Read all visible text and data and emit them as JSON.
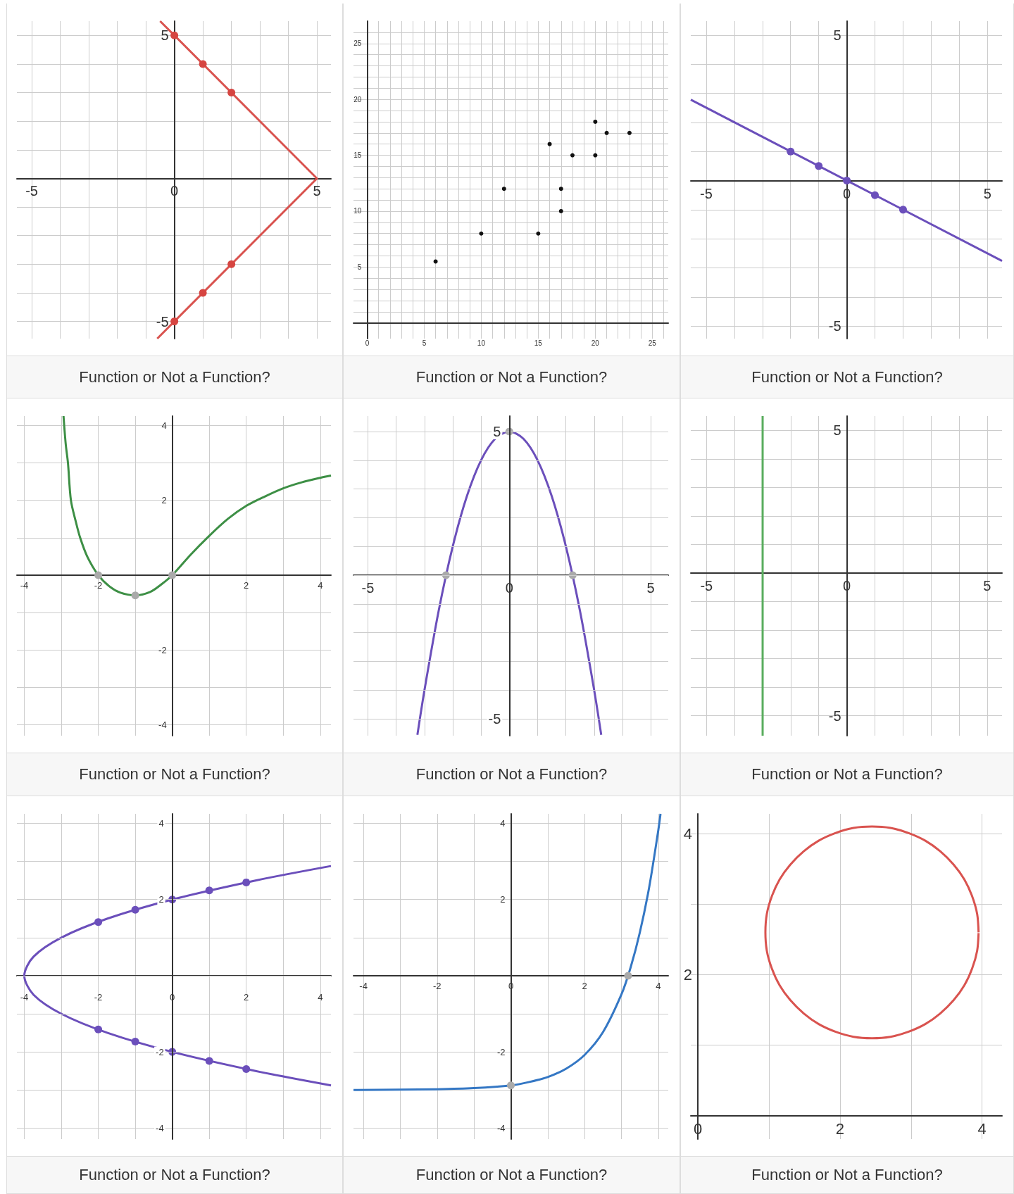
{
  "chart_data": [
    {
      "type": "line",
      "annotations": [
        "Function or Not a Function?"
      ],
      "xlim": [
        -5.52,
        5.49
      ],
      "ylim": [
        -5.6,
        5.5
      ],
      "grid": true,
      "xticks": [
        -5,
        {
          "value": -4,
          "label": null
        },
        {
          "value": -3,
          "label": null
        },
        {
          "value": -2,
          "label": null
        },
        {
          "value": -1,
          "label": null
        },
        0,
        {
          "value": 1,
          "label": null
        },
        {
          "value": 2,
          "label": null
        },
        {
          "value": 3,
          "label": null
        },
        {
          "value": 4,
          "label": null
        },
        5
      ],
      "yticks": [
        -5,
        {
          "value": -4,
          "label": null
        },
        {
          "value": -3,
          "label": null
        },
        {
          "value": -2,
          "label": null
        },
        {
          "value": -1,
          "label": null
        },
        {
          "value": 0,
          "label": null
        },
        {
          "value": 1,
          "label": null
        },
        {
          "value": 2,
          "label": null
        },
        {
          "value": 3,
          "label": null
        },
        {
          "value": 4,
          "label": null
        },
        5
      ],
      "series": [
        {
          "marker": "none",
          "color": "#d9534f",
          "x": [
            -0.5,
            5,
            -0.6
          ],
          "values": [
            5.5,
            0,
            -5.6
          ]
        },
        {
          "type": "scatter",
          "marker": "circle",
          "color": "#d64541",
          "x": [
            0,
            1,
            2,
            2,
            1,
            0
          ],
          "values": [
            5,
            4,
            3,
            -3,
            -4,
            -5
          ]
        }
      ]
    },
    {
      "type": "scatter",
      "annotations": [
        "Function or Not a Function?"
      ],
      "xlim": [
        -1.2,
        26.4
      ],
      "ylim": [
        -1.4,
        27
      ],
      "grid": true,
      "xticks": [
        0,
        {
          "value": 1,
          "label": null
        },
        {
          "value": 2,
          "label": null
        },
        {
          "value": 3,
          "label": null
        },
        {
          "value": 4,
          "label": null
        },
        5,
        {
          "value": 6,
          "label": null
        },
        {
          "value": 7,
          "label": null
        },
        {
          "value": 8,
          "label": null
        },
        {
          "value": 9,
          "label": null
        },
        10,
        {
          "value": 11,
          "label": null
        },
        {
          "value": 12,
          "label": null
        },
        {
          "value": 13,
          "label": null
        },
        {
          "value": 14,
          "label": null
        },
        15,
        {
          "value": 16,
          "label": null
        },
        {
          "value": 17,
          "label": null
        },
        {
          "value": 18,
          "label": null
        },
        {
          "value": 19,
          "label": null
        },
        20,
        {
          "value": 21,
          "label": null
        },
        {
          "value": 22,
          "label": null
        },
        {
          "value": 23,
          "label": null
        },
        {
          "value": 24,
          "label": null
        },
        25,
        {
          "value": 26,
          "label": null
        }
      ],
      "yticks": [
        {
          "value": 0,
          "label": null
        },
        {
          "value": 1,
          "label": null
        },
        {
          "value": 2,
          "label": null
        },
        {
          "value": 3,
          "label": null
        },
        {
          "value": 4,
          "label": null
        },
        5,
        {
          "value": 6,
          "label": null
        },
        {
          "value": 7,
          "label": null
        },
        {
          "value": 8,
          "label": null
        },
        {
          "value": 9,
          "label": null
        },
        10,
        {
          "value": 11,
          "label": null
        },
        {
          "value": 12,
          "label": null
        },
        {
          "value": 13,
          "label": null
        },
        {
          "value": 14,
          "label": null
        },
        15,
        {
          "value": 16,
          "label": null
        },
        {
          "value": 17,
          "label": null
        },
        {
          "value": 18,
          "label": null
        },
        {
          "value": 19,
          "label": null
        },
        20,
        {
          "value": 21,
          "label": null
        },
        {
          "value": 22,
          "label": null
        },
        {
          "value": 23,
          "label": null
        },
        {
          "value": 24,
          "label": null
        },
        25,
        {
          "value": 26,
          "label": null
        }
      ],
      "series": [
        {
          "marker": "circle",
          "color": "#111111",
          "x": [
            6,
            10,
            12,
            15,
            16,
            17,
            17,
            18,
            20,
            20,
            21,
            23
          ],
          "values": [
            5.5,
            8,
            12,
            8,
            16,
            12,
            10,
            15,
            18,
            15,
            17,
            17
          ]
        }
      ]
    },
    {
      "type": "line",
      "annotations": [
        "Function or Not a Function?"
      ],
      "xlim": [
        -5.55,
        5.52
      ],
      "ylim": [
        -5.43,
        5.48
      ],
      "grid": true,
      "xticks": [
        -5,
        {
          "value": -4,
          "label": null
        },
        {
          "value": -3,
          "label": null
        },
        {
          "value": -2,
          "label": null
        },
        {
          "value": -1,
          "label": null
        },
        0,
        {
          "value": 1,
          "label": null
        },
        {
          "value": 2,
          "label": null
        },
        {
          "value": 3,
          "label": null
        },
        {
          "value": 4,
          "label": null
        },
        5
      ],
      "yticks": [
        -5,
        {
          "value": -4,
          "label": null
        },
        {
          "value": -3,
          "label": null
        },
        {
          "value": -2,
          "label": null
        },
        {
          "value": -1,
          "label": null
        },
        {
          "value": 0,
          "label": null
        },
        {
          "value": 1,
          "label": null
        },
        {
          "value": 2,
          "label": null
        },
        {
          "value": 3,
          "label": null
        },
        {
          "value": 4,
          "label": null
        },
        5
      ],
      "series": [
        {
          "marker": "none",
          "color": "#6b4fbb",
          "x": [
            -5.55,
            5.52
          ],
          "values": [
            2.78,
            -2.76
          ]
        },
        {
          "type": "scatter",
          "marker": "circle",
          "color": "#6b4fbb",
          "x": [
            -2,
            -1,
            0,
            1,
            2
          ],
          "values": [
            1,
            0.5,
            0,
            -0.5,
            -1
          ]
        }
      ]
    },
    {
      "type": "line",
      "annotations": [
        "Function or Not a Function?"
      ],
      "xlim": [
        -4.2,
        4.29
      ],
      "ylim": [
        -4.29,
        4.25
      ],
      "grid": true,
      "xticks": [
        -4,
        {
          "value": -3,
          "label": null
        },
        -2,
        {
          "value": -1,
          "label": null
        },
        {
          "value": 0,
          "label": null
        },
        {
          "value": 1,
          "label": null
        },
        2,
        {
          "value": 3,
          "label": null
        },
        4
      ],
      "yticks": [
        -4,
        {
          "value": -3,
          "label": null
        },
        -2,
        {
          "value": -1,
          "label": null
        },
        {
          "value": 0,
          "label": null
        },
        {
          "value": 1,
          "label": null
        },
        2,
        {
          "value": 3,
          "label": null
        },
        4
      ],
      "series": [
        {
          "marker": "none",
          "color": "#3d8f45",
          "x": [
            -2.94,
            -2.88,
            -2.82,
            -2.74,
            -2.6,
            -2.49,
            -2.3,
            -2,
            -1.7,
            -1.4,
            -1,
            -0.6,
            -0.3,
            0,
            0.5,
            1,
            1.5,
            2,
            2.5,
            3,
            3.5,
            4,
            4.29
          ],
          "values": [
            4.25,
            3.5,
            3,
            2,
            1.4,
            1,
            0.5,
            0,
            -0.3,
            -0.47,
            -0.54,
            -0.45,
            -0.25,
            0,
            0.55,
            1.05,
            1.5,
            1.85,
            2.1,
            2.32,
            2.48,
            2.6,
            2.66
          ]
        },
        {
          "type": "scatter",
          "marker": "circle",
          "color": "#aaaaaa",
          "x": [
            -2,
            -1,
            0
          ],
          "values": [
            0,
            -0.54,
            0
          ]
        }
      ]
    },
    {
      "type": "line",
      "annotations": [
        "Function or Not a Function?"
      ],
      "xlim": [
        -5.51,
        5.62
      ],
      "ylim": [
        -5.59,
        5.54
      ],
      "grid": true,
      "xticks": [
        -5,
        {
          "value": -4,
          "label": null
        },
        {
          "value": -3,
          "label": null
        },
        {
          "value": -2,
          "label": null
        },
        {
          "value": -1,
          "label": null
        },
        0,
        {
          "value": 1,
          "label": null
        },
        {
          "value": 2,
          "label": null
        },
        {
          "value": 3,
          "label": null
        },
        {
          "value": 4,
          "label": null
        },
        5
      ],
      "yticks": [
        -5,
        {
          "value": -4,
          "label": null
        },
        {
          "value": -3,
          "label": null
        },
        {
          "value": -2,
          "label": null
        },
        {
          "value": -1,
          "label": null
        },
        {
          "value": 0,
          "label": null
        },
        {
          "value": 1,
          "label": null
        },
        {
          "value": 2,
          "label": null
        },
        {
          "value": 3,
          "label": null
        },
        {
          "value": 4,
          "label": null
        },
        5
      ],
      "series": [
        {
          "marker": "none",
          "color": "#6b4fbb",
          "x": [
            -3.25,
            -3,
            -2.5,
            -2,
            -1.5,
            -1,
            -0.5,
            0,
            0.5,
            1,
            1.5,
            2,
            2.5,
            3,
            3.25
          ],
          "values": [
            -5.56,
            -4,
            -1.25,
            1,
            2.75,
            4,
            4.75,
            5,
            4.75,
            4,
            2.75,
            1,
            -1.25,
            -4,
            -5.56
          ]
        },
        {
          "type": "scatter",
          "marker": "circle",
          "color": "#aaaaaa",
          "x": [
            -2.24,
            0,
            2.24
          ],
          "values": [
            0,
            5,
            0
          ]
        }
      ]
    },
    {
      "type": "line",
      "annotations": [
        "Function or Not a Function?"
      ],
      "xlim": [
        -5.56,
        5.53
      ],
      "ylim": [
        -5.7,
        5.5
      ],
      "grid": true,
      "xticks": [
        -5,
        {
          "value": -4,
          "label": null
        },
        {
          "value": -3,
          "label": null
        },
        {
          "value": -2,
          "label": null
        },
        {
          "value": -1,
          "label": null
        },
        0,
        {
          "value": 1,
          "label": null
        },
        {
          "value": 2,
          "label": null
        },
        {
          "value": 3,
          "label": null
        },
        {
          "value": 4,
          "label": null
        },
        5
      ],
      "yticks": [
        -5,
        {
          "value": -4,
          "label": null
        },
        {
          "value": -3,
          "label": null
        },
        {
          "value": -2,
          "label": null
        },
        {
          "value": -1,
          "label": null
        },
        {
          "value": 0,
          "label": null
        },
        {
          "value": 1,
          "label": null
        },
        {
          "value": 2,
          "label": null
        },
        {
          "value": 3,
          "label": null
        },
        {
          "value": 4,
          "label": null
        },
        5
      ],
      "series": [
        {
          "marker": "none",
          "color": "#5aad5e",
          "x": [
            -3,
            -3
          ],
          "values": [
            5.5,
            -5.7
          ]
        }
      ]
    },
    {
      "type": "line",
      "annotations": [
        "Function or Not a Function?"
      ],
      "xlim": [
        -4.2,
        4.29
      ],
      "ylim": [
        -4.29,
        4.25
      ],
      "grid": true,
      "xticks": [
        -4,
        {
          "value": -3,
          "label": null
        },
        -2,
        {
          "value": -1,
          "label": null
        },
        0,
        {
          "value": 1,
          "label": null
        },
        2,
        {
          "value": 3,
          "label": null
        },
        4
      ],
      "yticks": [
        -4,
        {
          "value": -3,
          "label": null
        },
        -2,
        {
          "value": -1,
          "label": null
        },
        {
          "value": 0,
          "label": null
        },
        {
          "value": 1,
          "label": null
        },
        2,
        {
          "value": 3,
          "label": null
        },
        4
      ],
      "series": [
        {
          "marker": "none",
          "color": "#6b4fbb",
          "x": [
            4.29,
            2.25,
            0,
            -1.75,
            -3,
            -3.75,
            -4,
            -3.75,
            -3,
            -1.75,
            0,
            2.25,
            4.29
          ],
          "values": [
            -2.88,
            -2.5,
            -2,
            -1.5,
            -1,
            -0.5,
            0,
            0.5,
            1,
            1.5,
            2,
            2.5,
            2.88
          ]
        },
        {
          "type": "scatter",
          "marker": "circle",
          "color": "#6b4fbb",
          "x": [
            -2,
            -1,
            0,
            1,
            2,
            -2,
            -1,
            0,
            1,
            2
          ],
          "values": [
            1.41,
            1.73,
            2,
            2.24,
            2.45,
            -1.41,
            -1.73,
            -2,
            -2.24,
            -2.45
          ]
        }
      ]
    },
    {
      "type": "line",
      "annotations": [
        "Function or Not a Function?"
      ],
      "xlim": [
        -4.27,
        4.27
      ],
      "ylim": [
        -4.29,
        4.25
      ],
      "grid": true,
      "xticks": [
        -4,
        {
          "value": -3,
          "label": null
        },
        -2,
        {
          "value": -1,
          "label": null
        },
        0,
        {
          "value": 1,
          "label": null
        },
        2,
        {
          "value": 3,
          "label": null
        },
        4
      ],
      "yticks": [
        -4,
        {
          "value": -3,
          "label": null
        },
        -2,
        {
          "value": -1,
          "label": null
        },
        {
          "value": 0,
          "label": null
        },
        {
          "value": 1,
          "label": null
        },
        2,
        {
          "value": 3,
          "label": null
        },
        4
      ],
      "series": [
        {
          "marker": "none",
          "color": "#3477c4",
          "x": [
            -4.27,
            -3,
            -2,
            -1,
            0,
            0.5,
            1,
            1.5,
            2,
            2.5,
            3,
            3.25,
            3.5,
            3.75,
            4,
            4.06
          ],
          "values": [
            -3,
            -2.99,
            -2.98,
            -2.95,
            -2.88,
            -2.79,
            -2.66,
            -2.44,
            -2.08,
            -1.48,
            -0.49,
            0.22,
            1.14,
            2.31,
            3.82,
            4.25
          ]
        },
        {
          "type": "scatter",
          "marker": "circle",
          "color": "#aaaaaa",
          "x": [
            0,
            3.18
          ],
          "values": [
            -2.88,
            0
          ]
        }
      ]
    },
    {
      "type": "line",
      "annotations": [
        "Function or Not a Function?"
      ],
      "xlim": [
        -0.1,
        4.28
      ],
      "ylim": [
        -0.33,
        4.28
      ],
      "grid": true,
      "xticks": [
        0,
        {
          "value": 1,
          "label": null
        },
        2,
        {
          "value": 3,
          "label": null
        },
        4
      ],
      "yticks": [
        {
          "value": 0,
          "label": null
        },
        {
          "value": 1,
          "label": null
        },
        2,
        {
          "value": 3,
          "label": null
        },
        4
      ],
      "series": [
        {
          "marker": "none",
          "color": "#d9534f",
          "x": [
            3.95,
            3.93,
            3.86,
            3.75,
            3.6,
            3.41,
            3.2,
            2.96,
            2.71,
            2.45,
            2.19,
            1.94,
            1.7,
            1.49,
            1.3,
            1.15,
            1.04,
            0.97,
            0.95,
            0.97,
            1.04,
            1.15,
            1.3,
            1.49,
            1.7,
            1.94,
            2.19,
            2.45,
            2.71,
            2.96,
            3.2,
            3.41,
            3.6,
            3.75,
            3.86,
            3.93,
            3.95
          ],
          "values": [
            2.6,
            2.86,
            3.11,
            3.35,
            3.56,
            3.75,
            3.9,
            4.01,
            4.08,
            4.1,
            4.08,
            4.01,
            3.9,
            3.75,
            3.56,
            3.35,
            3.11,
            2.86,
            2.6,
            2.34,
            2.09,
            1.85,
            1.64,
            1.45,
            1.3,
            1.19,
            1.12,
            1.1,
            1.12,
            1.19,
            1.3,
            1.45,
            1.64,
            1.85,
            2.09,
            2.34,
            2.59
          ]
        }
      ]
    }
  ]
}
